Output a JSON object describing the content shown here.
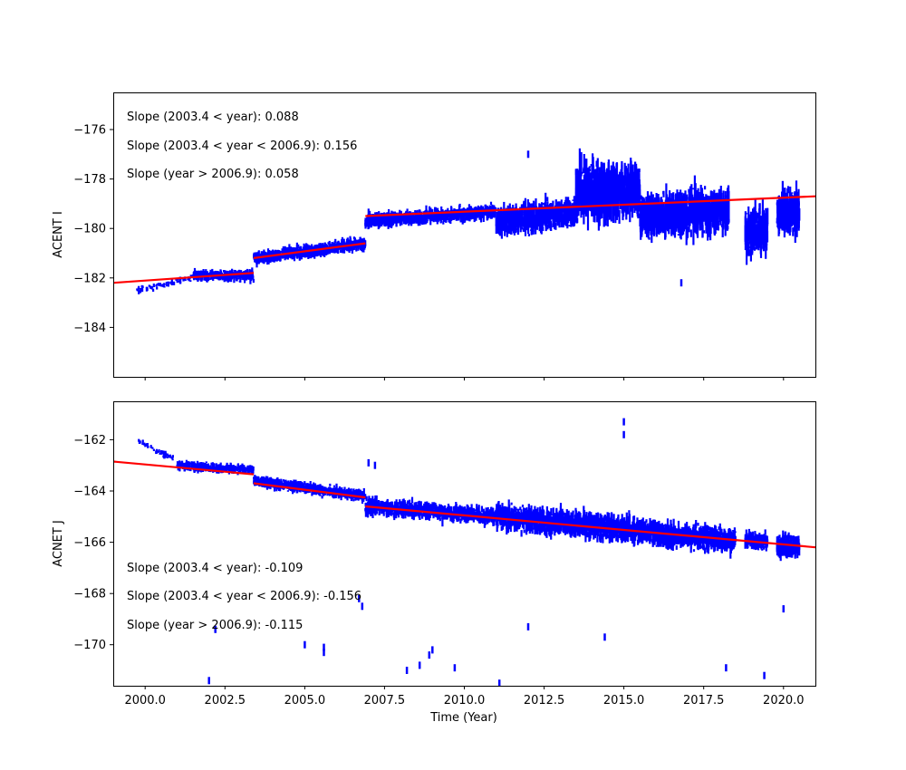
{
  "chart_data": [
    {
      "type": "scatter",
      "ylabel": "ACENT I",
      "xlabel": "",
      "xlim": [
        1999.0,
        2021.0
      ],
      "ylim": [
        -186.0,
        -174.5
      ],
      "xticks": [
        2000.0,
        2002.5,
        2005.0,
        2007.5,
        2010.0,
        2012.5,
        2015.0,
        2017.5,
        2020.0
      ],
      "xtick_labels_shown": false,
      "yticks": [
        -176,
        -178,
        -180,
        -182,
        -184
      ],
      "ytick_labels": [
        "−176",
        "−178",
        "−180",
        "−182",
        "−184"
      ],
      "annotations": [
        "Slope (2003.4 < year):  0.088",
        "Slope (2003.4 <  year < 2006.9): 0.156",
        "Slope (year > 2006.9):  0.058"
      ],
      "point_color": "#0000ff",
      "line_color": "#ff0000",
      "fit_lines": [
        {
          "x": [
            1999.0,
            2003.4
          ],
          "y": [
            -182.2,
            -181.8
          ]
        },
        {
          "x": [
            2003.4,
            2006.9
          ],
          "y": [
            -181.2,
            -180.6
          ]
        },
        {
          "x": [
            2006.9,
            2021.0
          ],
          "y": [
            -179.5,
            -178.7
          ]
        }
      ],
      "segments": [
        {
          "x0": 1999.7,
          "x1": 2001.5,
          "a": -182.5,
          "b": -182.0,
          "spread": 0.35,
          "spike": 0.05,
          "n": 70
        },
        {
          "x0": 2001.5,
          "x1": 2003.4,
          "a": -181.9,
          "b": -181.9,
          "spread": 0.6,
          "spike": 0.15,
          "n": 380
        },
        {
          "x0": 2003.4,
          "x1": 2006.9,
          "a": -181.2,
          "b": -180.6,
          "spread": 0.75,
          "spike": 0.15,
          "n": 900
        },
        {
          "x0": 2006.9,
          "x1": 2011.0,
          "a": -179.7,
          "b": -179.3,
          "spread": 0.8,
          "spike": 0.3,
          "n": 1000
        },
        {
          "x0": 2011.0,
          "x1": 2013.5,
          "a": -179.7,
          "b": -179.3,
          "spread": 1.6,
          "spike": 0.3,
          "n": 800
        },
        {
          "x0": 2013.5,
          "x1": 2015.5,
          "a": -178.5,
          "b": -178.5,
          "spread": 3.0,
          "spike": 0.25,
          "n": 900
        },
        {
          "x0": 2015.5,
          "x1": 2018.3,
          "a": -179.5,
          "b": -179.3,
          "spread": 2.5,
          "spike": 0.25,
          "n": 900
        },
        {
          "x0": 2018.8,
          "x1": 2019.5,
          "a": -180.2,
          "b": -180.0,
          "spread": 2.5,
          "spike": 0.2,
          "n": 250
        },
        {
          "x0": 2019.8,
          "x1": 2020.5,
          "a": -179.3,
          "b": -179.3,
          "spread": 2.5,
          "spike": 0.2,
          "n": 300
        }
      ],
      "outliers": [
        {
          "x": 2001.1,
          "y": -182.1
        },
        {
          "x": 2012.0,
          "y": -177.0
        },
        {
          "x": 2016.8,
          "y": -182.2
        }
      ]
    },
    {
      "type": "scatter",
      "ylabel": "ACNET J",
      "xlabel": "Time (Year)",
      "xlim": [
        1999.0,
        2021.0
      ],
      "ylim": [
        -171.6,
        -160.5
      ],
      "xticks": [
        2000.0,
        2002.5,
        2005.0,
        2007.5,
        2010.0,
        2012.5,
        2015.0,
        2017.5,
        2020.0
      ],
      "xtick_labels": [
        "2000.0",
        "2002.5",
        "2005.0",
        "2007.5",
        "2010.0",
        "2012.5",
        "2015.0",
        "2017.5",
        "2020.0"
      ],
      "yticks": [
        -162,
        -164,
        -166,
        -168,
        -170
      ],
      "ytick_labels": [
        "−162",
        "−164",
        "−166",
        "−168",
        "−170"
      ],
      "annotations": [
        "Slope (2003.4 < year):  -0.109",
        "Slope (2003.4 <  year < 2006.9): -0.156",
        "Slope (year > 2006.9):  -0.115"
      ],
      "point_color": "#0000ff",
      "line_color": "#ff0000",
      "fit_lines": [
        {
          "x": [
            1999.0,
            2003.4
          ],
          "y": [
            -162.85,
            -163.35
          ]
        },
        {
          "x": [
            2003.4,
            2006.9
          ],
          "y": [
            -163.7,
            -164.25
          ]
        },
        {
          "x": [
            2006.9,
            2021.0
          ],
          "y": [
            -164.6,
            -166.2
          ]
        }
      ],
      "segments": [
        {
          "x0": 1999.7,
          "x1": 2001.0,
          "a": -162.0,
          "b": -162.8,
          "spread": 0.3,
          "spike": 0.05,
          "n": 60
        },
        {
          "x0": 2001.0,
          "x1": 2003.4,
          "a": -163.0,
          "b": -163.2,
          "spread": 0.5,
          "spike": 0.1,
          "n": 400
        },
        {
          "x0": 2003.4,
          "x1": 2006.9,
          "a": -163.6,
          "b": -164.2,
          "spread": 0.6,
          "spike": 0.1,
          "n": 800
        },
        {
          "x0": 2006.9,
          "x1": 2011.0,
          "a": -164.6,
          "b": -165.0,
          "spread": 0.9,
          "spike": 0.15,
          "n": 900
        },
        {
          "x0": 2011.0,
          "x1": 2016.0,
          "a": -165.0,
          "b": -165.6,
          "spread": 1.4,
          "spike": 0.2,
          "n": 1300
        },
        {
          "x0": 2016.0,
          "x1": 2018.5,
          "a": -165.7,
          "b": -165.9,
          "spread": 1.3,
          "spike": 0.2,
          "n": 700
        },
        {
          "x0": 2018.8,
          "x1": 2019.5,
          "a": -165.9,
          "b": -166.0,
          "spread": 0.9,
          "spike": 0.1,
          "n": 200
        },
        {
          "x0": 2019.8,
          "x1": 2020.5,
          "a": -166.1,
          "b": -166.2,
          "spread": 1.2,
          "spike": 0.15,
          "n": 250
        }
      ],
      "outliers": [
        {
          "x": 2000.6,
          "y": -162.6
        },
        {
          "x": 2002.0,
          "y": -171.4
        },
        {
          "x": 2002.2,
          "y": -169.4
        },
        {
          "x": 2005.0,
          "y": -170.0
        },
        {
          "x": 2005.6,
          "y": -170.1
        },
        {
          "x": 2005.6,
          "y": -170.3
        },
        {
          "x": 2006.7,
          "y": -168.2
        },
        {
          "x": 2006.8,
          "y": -168.5
        },
        {
          "x": 2007.0,
          "y": -162.9
        },
        {
          "x": 2007.2,
          "y": -163.0
        },
        {
          "x": 2008.2,
          "y": -171.0
        },
        {
          "x": 2008.6,
          "y": -170.8
        },
        {
          "x": 2008.9,
          "y": -170.4
        },
        {
          "x": 2009.0,
          "y": -170.2
        },
        {
          "x": 2009.7,
          "y": -170.9
        },
        {
          "x": 2011.1,
          "y": -171.5
        },
        {
          "x": 2012.0,
          "y": -169.3
        },
        {
          "x": 2014.4,
          "y": -169.7
        },
        {
          "x": 2015.0,
          "y": -161.3
        },
        {
          "x": 2015.0,
          "y": -161.8
        },
        {
          "x": 2018.2,
          "y": -170.9
        },
        {
          "x": 2019.4,
          "y": -171.2
        },
        {
          "x": 2020.0,
          "y": -168.6
        }
      ]
    }
  ]
}
